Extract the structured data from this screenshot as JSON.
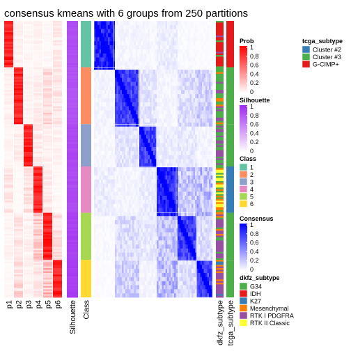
{
  "chart_data": {
    "type": "heatmap",
    "title": "consensus kmeans with 6 groups from 250 partitions",
    "n_samples": 340,
    "groups": [
      {
        "cls": "1",
        "size": 57
      },
      {
        "cls": "2",
        "size": 70
      },
      {
        "cls": "3",
        "size": 52
      },
      {
        "cls": "4",
        "size": 57
      },
      {
        "cls": "5",
        "size": 58
      },
      {
        "cls": "6",
        "size": 46
      }
    ],
    "prob_columns": [
      "p1",
      "p2",
      "p3",
      "p4",
      "p5",
      "p6"
    ],
    "extra_columns": [
      "Silhouette",
      "Class"
    ],
    "right_columns": [
      "dkfz_subtype",
      "tcga_subtype"
    ],
    "silhouette": [
      0.85,
      0.82,
      0.87,
      0.86,
      0.9,
      0.92
    ],
    "prob_off_diagonal": [
      [
        0.05,
        0.04,
        0.05,
        0.03,
        0.08
      ],
      [
        0.06,
        0.05,
        0.07,
        0.15,
        0.1
      ],
      [
        0.04,
        0.07,
        0.08,
        0.06,
        0.05
      ],
      [
        0.1,
        0.02,
        0.12,
        0.08,
        0.03
      ],
      [
        0.05,
        0.1,
        0.06,
        0.2,
        0.12
      ],
      [
        0.03,
        0.15,
        0.05,
        0.1,
        0.25
      ]
    ],
    "consensus_between": [
      [
        1.0,
        0.05,
        0.04,
        0.08,
        0.03,
        0.02
      ],
      [
        0.05,
        0.85,
        0.12,
        0.05,
        0.15,
        0.2
      ],
      [
        0.04,
        0.12,
        0.85,
        0.08,
        0.1,
        0.05
      ],
      [
        0.08,
        0.05,
        0.08,
        0.98,
        0.25,
        0.3
      ],
      [
        0.03,
        0.15,
        0.1,
        0.25,
        0.85,
        0.15
      ],
      [
        0.02,
        0.2,
        0.05,
        0.3,
        0.15,
        0.85
      ]
    ],
    "tcga_by_group": [
      "G-CIMP+",
      "Cluster #3",
      "Cluster #3",
      "Cluster #2",
      "Cluster #3",
      "Cluster #3"
    ],
    "dkfz_by_group": [
      [
        "IDH",
        "RTK I PDGFRA",
        "G34"
      ],
      [
        "G34",
        "Mesenchymal",
        "RTK I PDGFRA"
      ],
      [
        "G34",
        "RTK I PDGFRA"
      ],
      [
        "RTK II Classic",
        "Mesenchymal",
        "G34"
      ],
      [
        "RTK I PDGFRA",
        "Mesenchymal",
        "G34"
      ],
      [
        "RTK I PDGFRA",
        "Mesenchymal",
        "G34",
        "K27"
      ]
    ],
    "legends": {
      "prob": {
        "title": "Prob",
        "ticks": [
          "1",
          "0.8",
          "0.6",
          "0.4",
          "0.2",
          "0"
        ],
        "low": "#ffffff",
        "high": "#ff0000"
      },
      "silhouette": {
        "title": "Silhouette",
        "ticks": [
          "1",
          "0.8",
          "0.6",
          "0.4",
          "0.2",
          "0"
        ],
        "low": "#ffffff",
        "high": "#9e28f0"
      },
      "class": {
        "title": "Class",
        "items": [
          {
            "label": "1",
            "color": "#66c2a5"
          },
          {
            "label": "2",
            "color": "#fc8d62"
          },
          {
            "label": "3",
            "color": "#8da0cb"
          },
          {
            "label": "4",
            "color": "#e78ac3"
          },
          {
            "label": "5",
            "color": "#a6d854"
          },
          {
            "label": "6",
            "color": "#ffd92f"
          }
        ]
      },
      "consensus": {
        "title": "Consensus",
        "ticks": [
          "1",
          "0.8",
          "0.6",
          "0.4",
          "0.2",
          "0"
        ],
        "low": "#ffffff",
        "high": "#0000ff"
      },
      "dkfz": {
        "title": "dkfz_subtype",
        "items": [
          {
            "label": "G34",
            "color": "#4daf4a"
          },
          {
            "label": "IDH",
            "color": "#e41a1c"
          },
          {
            "label": "K27",
            "color": "#377eb8"
          },
          {
            "label": "Mesenchymal",
            "color": "#ff7f00"
          },
          {
            "label": "RTK I PDGFRA",
            "color": "#984ea3"
          },
          {
            "label": "RTK II Classic",
            "color": "#ffff33"
          }
        ]
      },
      "tcga": {
        "title": "tcga_subtype",
        "items": [
          {
            "label": "Cluster #2",
            "color": "#377eb8"
          },
          {
            "label": "Cluster #3",
            "color": "#4daf4a"
          },
          {
            "label": "G-CIMP+",
            "color": "#e41a1c"
          }
        ]
      }
    }
  }
}
